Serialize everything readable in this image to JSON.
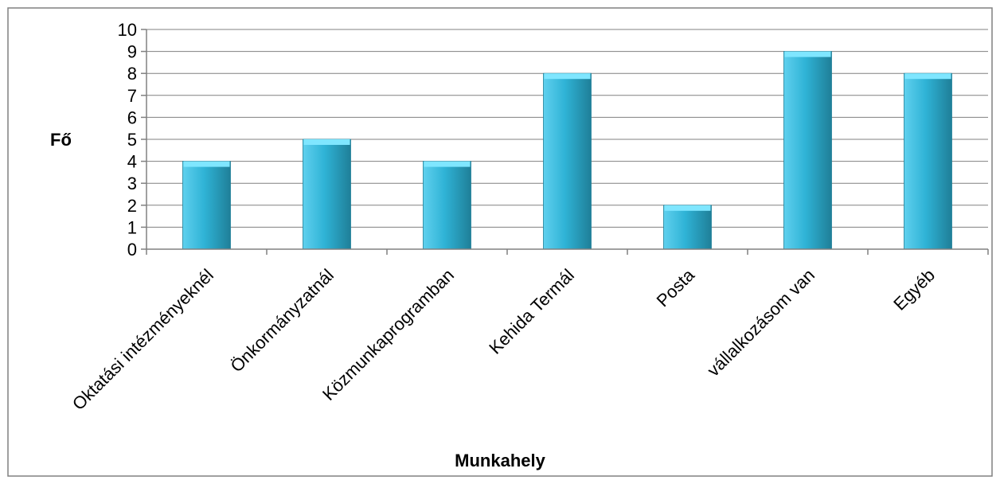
{
  "chart_data": {
    "type": "bar",
    "categories": [
      "Oktatási intézményeknél",
      "Önkormányzatnál",
      "Közmunkaprogramban",
      "Kehida Termál",
      "Posta",
      "vállalkozásom van",
      "Egyéb"
    ],
    "values": [
      4,
      5,
      4,
      8,
      2,
      9,
      8
    ],
    "xlabel": "Munkahely",
    "ylabel": "Fő",
    "ylim": [
      0,
      10
    ],
    "yticks": [
      "0",
      "1",
      "2",
      "3",
      "4",
      "5",
      "6",
      "7",
      "8",
      "9",
      "10"
    ],
    "grid": true,
    "legend": "none",
    "colors": {
      "bar_light": "#5fd0ee",
      "bar_mid": "#2fb3d6",
      "bar_dark": "#1f7f98",
      "bar_top": "#7fe6ff",
      "grid": "#808080",
      "frame": "#808080"
    }
  }
}
